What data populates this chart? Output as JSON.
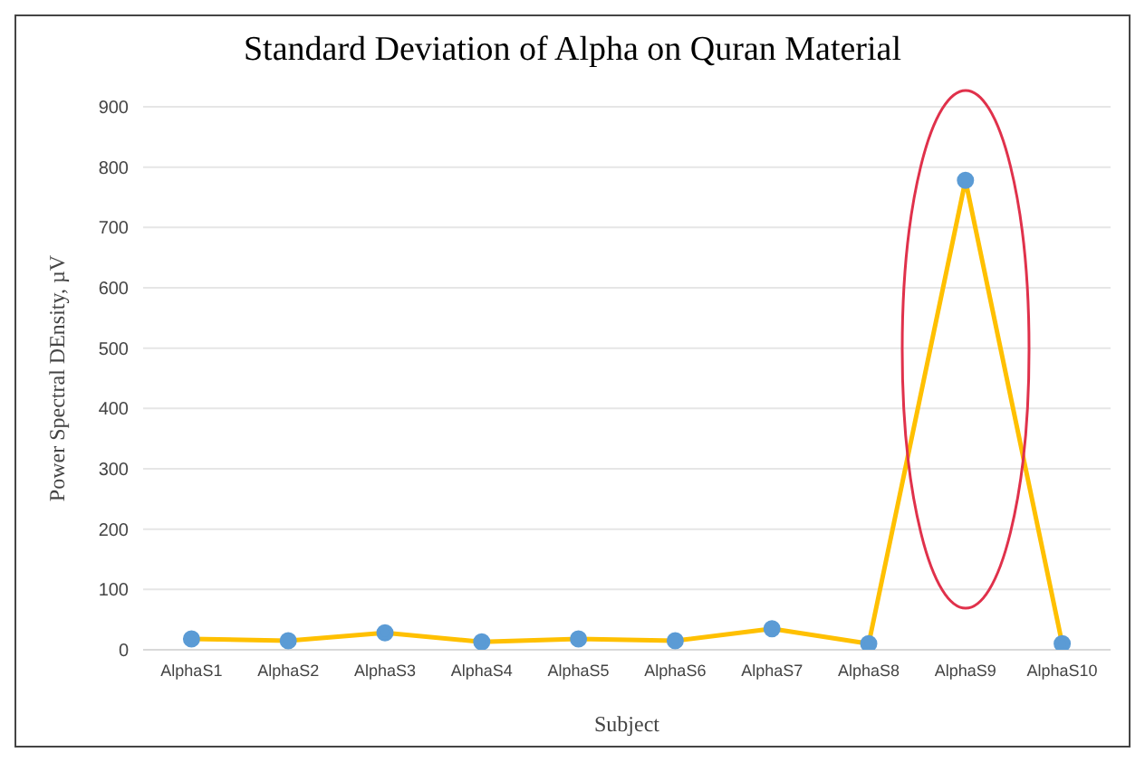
{
  "chart_data": {
    "type": "line",
    "title": "Standard Deviation of Alpha on Quran Material",
    "xlabel": "Subject",
    "ylabel": "Power Spectral DEnsity, µV",
    "categories": [
      "AlphaS1",
      "AlphaS2",
      "AlphaS3",
      "AlphaS4",
      "AlphaS5",
      "AlphaS6",
      "AlphaS7",
      "AlphaS8",
      "AlphaS9",
      "AlphaS10"
    ],
    "series": [
      {
        "color": "#ffc000",
        "values": [
          18,
          15,
          28,
          13,
          18,
          15,
          35,
          10,
          778,
          10
        ]
      }
    ],
    "marker": "circle",
    "ylim": [
      0,
      900
    ],
    "yticks": [
      0,
      100,
      200,
      300,
      400,
      500,
      600,
      700,
      800,
      900
    ],
    "grid": "y",
    "legend": false
  }
}
